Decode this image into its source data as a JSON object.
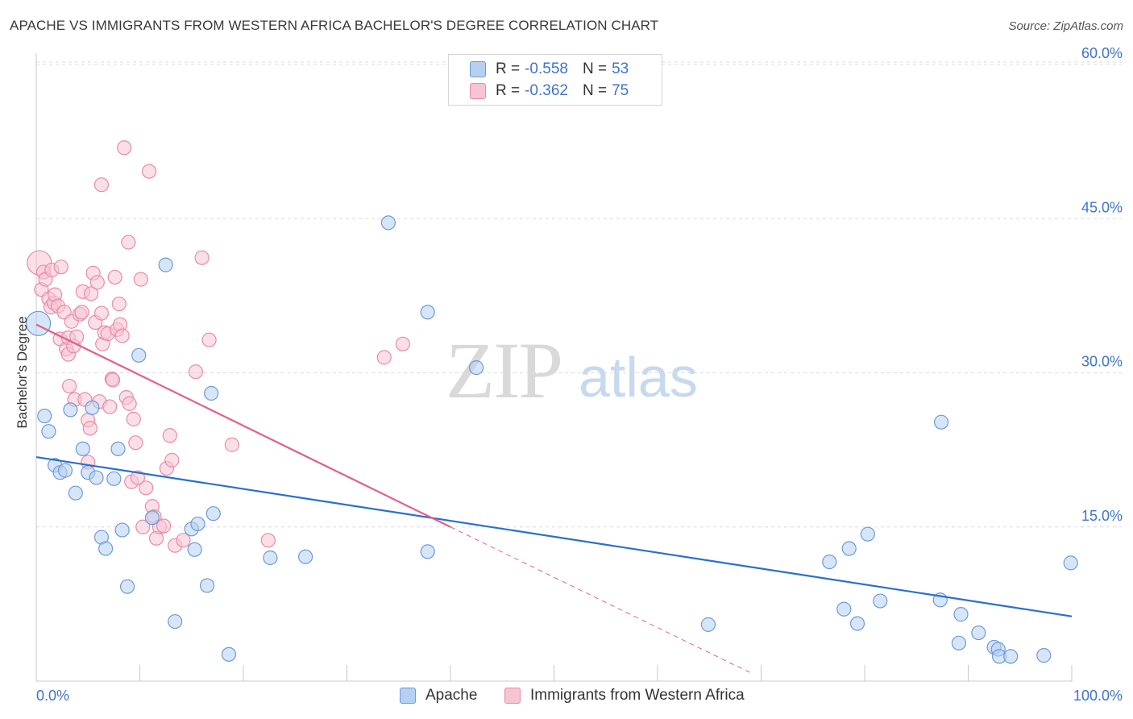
{
  "title": "APACHE VS IMMIGRANTS FROM WESTERN AFRICA BACHELOR'S DEGREE CORRELATION CHART",
  "source": "Source: ZipAtlas.com",
  "watermark": {
    "zip": "ZIP",
    "atlas": "atlas"
  },
  "legend": {
    "r_label": "R =",
    "n_label": "N =",
    "series": [
      {
        "r": "-0.558",
        "n": "53"
      },
      {
        "r": "-0.362",
        "n": "75"
      }
    ]
  },
  "chart_data": {
    "type": "scatter",
    "title": "APACHE VS IMMIGRANTS FROM WESTERN AFRICA BACHELOR'S DEGREE CORRELATION CHART",
    "xlabel": "",
    "ylabel": "Bachelor's Degree",
    "xlim": [
      0,
      100
    ],
    "ylim": [
      0,
      60
    ],
    "x_tick_labels": [
      "0.0%",
      "100.0%"
    ],
    "y_ticks": [
      15,
      30,
      45,
      60
    ],
    "y_tick_labels": [
      "15.0%",
      "30.0%",
      "45.0%",
      "60.0%"
    ],
    "grid": true,
    "legend_position": "top-center",
    "colors": {
      "apache_fill": "#b6d0f2",
      "apache_stroke": "#6b9bd8",
      "apache_line": "#2a6fce",
      "waf_fill": "#f7c4d4",
      "waf_stroke": "#e88ba8",
      "waf_line": "#e0608a"
    },
    "series": [
      {
        "name": "Apache",
        "trend": {
          "x": [
            0,
            100
          ],
          "y": [
            21.8,
            6.3
          ]
        },
        "points": [
          [
            0.2,
            34.8
          ],
          [
            0.8,
            25.8
          ],
          [
            1.2,
            24.3
          ],
          [
            1.8,
            21.0
          ],
          [
            2.3,
            20.3
          ],
          [
            2.8,
            20.5
          ],
          [
            3.3,
            26.4
          ],
          [
            3.8,
            18.3
          ],
          [
            4.5,
            22.6
          ],
          [
            5.0,
            20.3
          ],
          [
            5.4,
            26.6
          ],
          [
            5.8,
            19.8
          ],
          [
            6.3,
            14.0
          ],
          [
            6.7,
            12.9
          ],
          [
            7.5,
            19.7
          ],
          [
            7.9,
            22.6
          ],
          [
            8.3,
            14.7
          ],
          [
            8.8,
            9.2
          ],
          [
            9.9,
            31.7
          ],
          [
            11.2,
            15.9
          ],
          [
            12.5,
            40.5
          ],
          [
            13.4,
            5.8
          ],
          [
            15.0,
            14.8
          ],
          [
            15.3,
            12.8
          ],
          [
            15.6,
            15.3
          ],
          [
            16.5,
            9.3
          ],
          [
            16.9,
            28.0
          ],
          [
            17.1,
            16.3
          ],
          [
            18.6,
            2.6
          ],
          [
            22.6,
            12.0
          ],
          [
            26.0,
            12.1
          ],
          [
            34.0,
            44.6
          ],
          [
            37.8,
            35.9
          ],
          [
            37.8,
            12.6
          ],
          [
            42.5,
            30.5
          ],
          [
            64.9,
            5.5
          ],
          [
            76.6,
            11.6
          ],
          [
            78.0,
            7.0
          ],
          [
            78.5,
            12.9
          ],
          [
            79.3,
            5.6
          ],
          [
            80.3,
            14.3
          ],
          [
            81.5,
            7.8
          ],
          [
            87.3,
            7.9
          ],
          [
            87.4,
            25.2
          ],
          [
            89.1,
            3.7
          ],
          [
            89.3,
            6.5
          ],
          [
            91.0,
            4.7
          ],
          [
            92.5,
            3.3
          ],
          [
            92.9,
            3.1
          ],
          [
            93.0,
            2.4
          ],
          [
            94.1,
            2.4
          ],
          [
            97.3,
            2.5
          ],
          [
            99.9,
            11.5
          ]
        ]
      },
      {
        "name": "Immigrants from Western Africa",
        "trend": {
          "x": [
            0,
            40
          ],
          "y": [
            34.7,
            15.0
          ]
        },
        "trend_dashed": {
          "x": [
            40,
            69
          ],
          "y": [
            15.0,
            0.8
          ]
        },
        "points": [
          [
            0.3,
            40.7
          ],
          [
            0.5,
            38.1
          ],
          [
            0.7,
            39.8
          ],
          [
            0.9,
            39.1
          ],
          [
            1.2,
            37.2
          ],
          [
            1.4,
            36.4
          ],
          [
            1.5,
            40.0
          ],
          [
            1.7,
            36.8
          ],
          [
            1.8,
            37.6
          ],
          [
            2.1,
            36.5
          ],
          [
            2.3,
            33.3
          ],
          [
            2.4,
            40.3
          ],
          [
            2.7,
            35.9
          ],
          [
            2.9,
            32.3
          ],
          [
            3.1,
            31.8
          ],
          [
            3.1,
            33.4
          ],
          [
            3.2,
            28.7
          ],
          [
            3.4,
            35.0
          ],
          [
            3.6,
            32.6
          ],
          [
            3.7,
            27.4
          ],
          [
            3.9,
            33.5
          ],
          [
            4.2,
            35.7
          ],
          [
            4.4,
            35.9
          ],
          [
            4.5,
            37.9
          ],
          [
            4.7,
            27.4
          ],
          [
            5.0,
            21.3
          ],
          [
            5.0,
            25.4
          ],
          [
            5.2,
            24.6
          ],
          [
            5.3,
            37.7
          ],
          [
            5.5,
            39.7
          ],
          [
            5.7,
            34.9
          ],
          [
            5.9,
            38.8
          ],
          [
            6.1,
            27.2
          ],
          [
            6.3,
            35.8
          ],
          [
            6.4,
            32.8
          ],
          [
            6.6,
            33.9
          ],
          [
            6.9,
            33.8
          ],
          [
            7.1,
            26.7
          ],
          [
            7.3,
            29.4
          ],
          [
            7.4,
            29.3
          ],
          [
            7.6,
            39.3
          ],
          [
            7.8,
            34.2
          ],
          [
            8.0,
            36.7
          ],
          [
            8.1,
            34.7
          ],
          [
            8.3,
            33.6
          ],
          [
            8.5,
            51.9
          ],
          [
            8.7,
            27.6
          ],
          [
            8.9,
            42.7
          ],
          [
            9.0,
            27.0
          ],
          [
            9.2,
            19.4
          ],
          [
            9.4,
            25.5
          ],
          [
            9.6,
            23.2
          ],
          [
            9.8,
            19.8
          ],
          [
            10.1,
            39.1
          ],
          [
            10.3,
            15.0
          ],
          [
            10.6,
            18.8
          ],
          [
            10.9,
            49.6
          ],
          [
            11.2,
            17.0
          ],
          [
            11.4,
            16.0
          ],
          [
            11.6,
            13.9
          ],
          [
            11.9,
            15.0
          ],
          [
            12.3,
            15.1
          ],
          [
            12.6,
            20.7
          ],
          [
            12.9,
            23.9
          ],
          [
            13.1,
            21.5
          ],
          [
            13.4,
            13.2
          ],
          [
            14.2,
            13.7
          ],
          [
            15.4,
            30.1
          ],
          [
            16.0,
            41.2
          ],
          [
            16.7,
            33.2
          ],
          [
            18.9,
            23.0
          ],
          [
            22.4,
            13.7
          ],
          [
            33.6,
            31.5
          ],
          [
            35.4,
            32.8
          ],
          [
            6.3,
            48.3
          ]
        ]
      }
    ]
  }
}
